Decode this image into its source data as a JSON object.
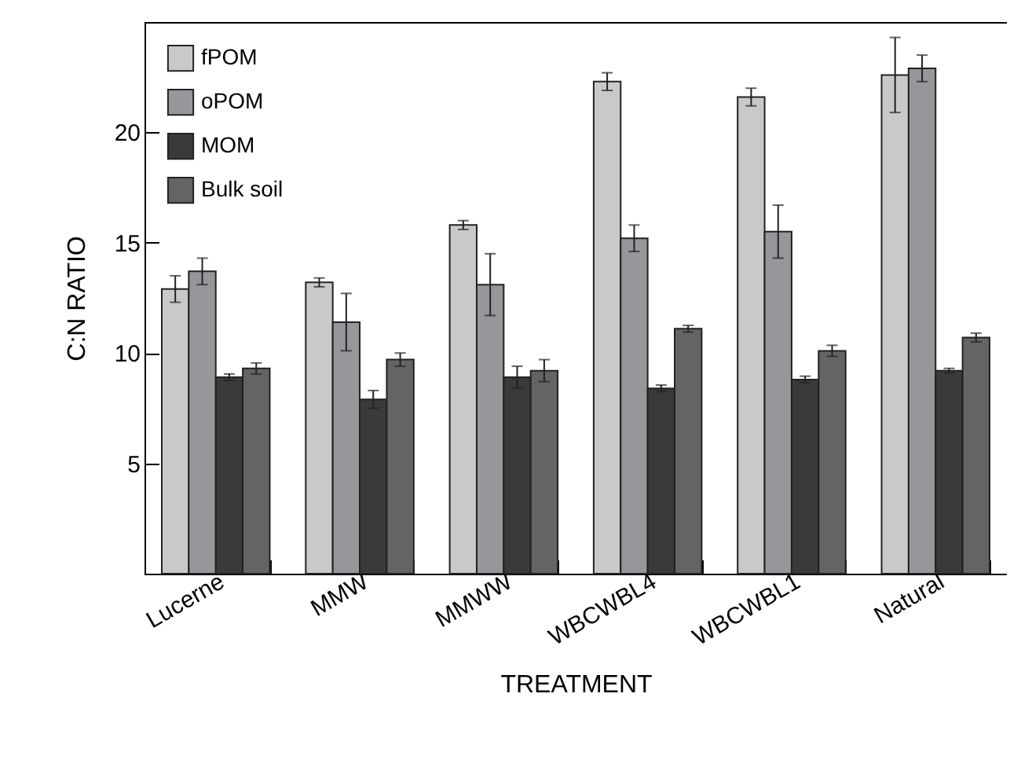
{
  "chart_data": {
    "type": "bar",
    "xlabel": "TREATMENT",
    "ylabel": "C:N RATIO",
    "categories": [
      "Lucerne",
      "MMW",
      "MMWW",
      "WBCWBL4",
      "WBCWBL1",
      "Natural"
    ],
    "series": [
      {
        "name": "fPOM",
        "color": "#c8c9cb",
        "values": [
          12.9,
          13.2,
          15.8,
          22.3,
          21.6,
          22.6
        ],
        "errors": [
          0.6,
          0.2,
          0.2,
          0.4,
          0.4,
          1.7
        ]
      },
      {
        "name": "oPOM",
        "color": "#96979b",
        "values": [
          13.7,
          11.4,
          13.1,
          15.2,
          15.5,
          22.9
        ],
        "errors": [
          0.6,
          1.3,
          1.4,
          0.6,
          1.2,
          0.6
        ]
      },
      {
        "name": "MOM",
        "color": "#3a3a3a",
        "values": [
          8.9,
          7.9,
          8.9,
          8.4,
          8.8,
          9.2
        ],
        "errors": [
          0.15,
          0.4,
          0.5,
          0.15,
          0.15,
          0.1
        ]
      },
      {
        "name": "Bulk soil",
        "color": "#646466",
        "values": [
          9.3,
          9.7,
          9.2,
          11.1,
          10.1,
          10.7
        ],
        "errors": [
          0.25,
          0.3,
          0.5,
          0.15,
          0.25,
          0.2
        ]
      }
    ],
    "ylim": [
      0,
      25
    ],
    "yticks": [
      5,
      10,
      15,
      20
    ],
    "grid": false,
    "legend": "top left"
  }
}
